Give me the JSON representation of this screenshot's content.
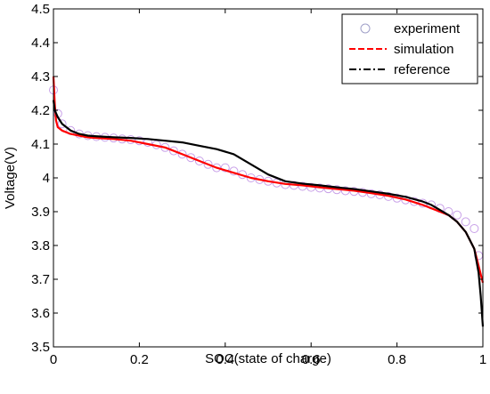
{
  "chart_data": {
    "type": "line",
    "title": "",
    "xlabel": "SOC(state of charge)",
    "ylabel": "Voltage(V)",
    "xlim": [
      0,
      1
    ],
    "ylim": [
      3.5,
      4.5
    ],
    "xticks": [
      0,
      0.2,
      0.4,
      0.6,
      0.8,
      1
    ],
    "yticks": [
      3.5,
      3.6,
      3.7,
      3.8,
      3.9,
      4,
      4.1,
      4.2,
      4.3,
      4.4,
      4.5
    ],
    "xtick_labels": [
      "0",
      "0.2",
      "0.4",
      "0.6",
      "0.8",
      "1"
    ],
    "ytick_labels": [
      "3.5",
      "3.6",
      "3.7",
      "3.8",
      "3.9",
      "4",
      "4.1",
      "4.2",
      "4.3",
      "4.4",
      "4.5"
    ],
    "grid": false,
    "legend_position": "top-right",
    "series": [
      {
        "name": "experiment",
        "style": "markers",
        "marker": "circle",
        "color": "#c8a0e8",
        "x": [
          0.0,
          0.01,
          0.02,
          0.04,
          0.06,
          0.08,
          0.1,
          0.12,
          0.14,
          0.16,
          0.18,
          0.2,
          0.22,
          0.24,
          0.26,
          0.28,
          0.3,
          0.32,
          0.34,
          0.36,
          0.38,
          0.4,
          0.42,
          0.44,
          0.46,
          0.48,
          0.5,
          0.52,
          0.54,
          0.56,
          0.58,
          0.6,
          0.62,
          0.64,
          0.66,
          0.68,
          0.7,
          0.72,
          0.74,
          0.76,
          0.78,
          0.8,
          0.82,
          0.84,
          0.86,
          0.88,
          0.9,
          0.92,
          0.94,
          0.96,
          0.98,
          0.99
        ],
        "y": [
          4.26,
          4.19,
          4.16,
          4.14,
          4.13,
          4.125,
          4.122,
          4.12,
          4.118,
          4.115,
          4.113,
          4.11,
          4.105,
          4.098,
          4.09,
          4.08,
          4.07,
          4.06,
          4.05,
          4.04,
          4.03,
          4.03,
          4.02,
          4.01,
          4.0,
          3.995,
          3.99,
          3.985,
          3.98,
          3.978,
          3.975,
          3.972,
          3.97,
          3.968,
          3.965,
          3.962,
          3.96,
          3.957,
          3.953,
          3.95,
          3.945,
          3.94,
          3.935,
          3.93,
          3.925,
          3.92,
          3.91,
          3.9,
          3.89,
          3.87,
          3.85,
          3.77
        ]
      },
      {
        "name": "simulation",
        "style": "dashed",
        "color": "#ff0000",
        "x": [
          0.0,
          0.003,
          0.006,
          0.01,
          0.02,
          0.04,
          0.06,
          0.08,
          0.1,
          0.14,
          0.18,
          0.22,
          0.26,
          0.3,
          0.34,
          0.38,
          0.42,
          0.46,
          0.5,
          0.54,
          0.58,
          0.62,
          0.66,
          0.7,
          0.74,
          0.78,
          0.82,
          0.86,
          0.88,
          0.9,
          0.92,
          0.94,
          0.96,
          0.98,
          0.99,
          1.0
        ],
        "y": [
          4.3,
          4.22,
          4.17,
          4.15,
          4.14,
          4.13,
          4.125,
          4.12,
          4.118,
          4.115,
          4.11,
          4.1,
          4.09,
          4.07,
          4.05,
          4.03,
          4.015,
          4.0,
          3.99,
          3.982,
          3.978,
          3.972,
          3.967,
          3.962,
          3.955,
          3.947,
          3.936,
          3.92,
          3.91,
          3.9,
          3.89,
          3.87,
          3.84,
          3.79,
          3.74,
          3.69
        ]
      },
      {
        "name": "reference",
        "style": "dash-dot",
        "color": "#000000",
        "x": [
          0.0,
          0.003,
          0.01,
          0.02,
          0.04,
          0.06,
          0.08,
          0.1,
          0.14,
          0.18,
          0.22,
          0.26,
          0.3,
          0.34,
          0.38,
          0.42,
          0.46,
          0.5,
          0.54,
          0.58,
          0.62,
          0.66,
          0.7,
          0.74,
          0.78,
          0.82,
          0.86,
          0.88,
          0.9,
          0.92,
          0.94,
          0.96,
          0.98,
          0.99,
          0.995,
          1.0
        ],
        "y": [
          4.23,
          4.2,
          4.18,
          4.16,
          4.14,
          4.13,
          4.125,
          4.123,
          4.12,
          4.118,
          4.115,
          4.11,
          4.105,
          4.095,
          4.085,
          4.07,
          4.04,
          4.01,
          3.99,
          3.983,
          3.978,
          3.972,
          3.967,
          3.96,
          3.953,
          3.944,
          3.93,
          3.92,
          3.905,
          3.89,
          3.87,
          3.84,
          3.79,
          3.72,
          3.65,
          3.56
        ]
      }
    ]
  }
}
